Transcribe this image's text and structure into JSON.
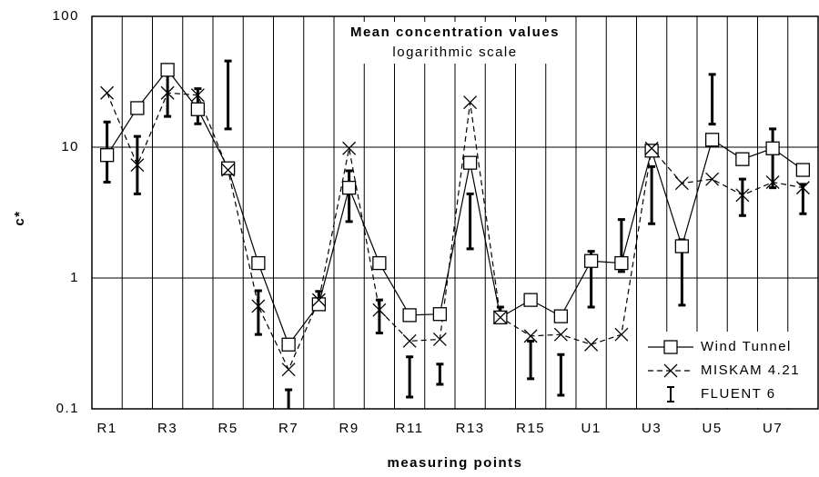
{
  "chart_data": {
    "type": "line",
    "title": "Mean concentration values",
    "subtitle": "logarithmic scale",
    "x_label": "measuring points",
    "y_label": "c*",
    "categories": [
      "R1",
      null,
      "R3",
      null,
      "R5",
      null,
      "R7",
      null,
      "R9",
      null,
      "R11",
      null,
      "R13",
      null,
      "R15",
      null,
      "U1",
      null,
      "U3",
      null,
      "U5",
      null,
      "U7",
      null
    ],
    "log_scale": true,
    "ylim": [
      0.1,
      100
    ],
    "yticks": [
      0.1,
      1,
      10,
      100
    ],
    "grid": true,
    "legend": "lower right",
    "series": [
      {
        "name": "Wind Tunnel",
        "color": "#000000",
        "marker": "square",
        "line": "solid",
        "values": [
          8.7,
          19.9,
          39,
          19.5,
          6.9,
          1.3,
          0.31,
          0.63,
          4.9,
          1.3,
          0.52,
          0.53,
          7.6,
          0.5,
          0.68,
          0.51,
          1.35,
          1.3,
          9.4,
          1.75,
          11.4,
          8.1,
          9.8,
          6.7
        ]
      },
      {
        "name": "MISKAM 4.21",
        "color": "#000000",
        "marker": "x",
        "line": "dashed",
        "values": [
          26,
          7.3,
          26,
          25,
          6.7,
          0.61,
          0.2,
          0.68,
          9.8,
          0.57,
          0.33,
          0.34,
          22,
          0.5,
          0.36,
          0.37,
          0.31,
          0.37,
          9.8,
          5.3,
          5.7,
          4.3,
          5.4,
          4.9
        ]
      },
      {
        "name": "FLUENT 6",
        "color": "#000000",
        "marker": "range",
        "low": [
          5.4,
          4.4,
          17.2,
          15.1,
          13.8,
          0.37,
          0.085,
          0.58,
          2.7,
          0.38,
          0.123,
          0.154,
          1.67,
          0.47,
          0.17,
          0.127,
          0.6,
          1.12,
          2.6,
          0.62,
          15,
          3.0,
          4.9,
          3.1
        ],
        "high": [
          15.6,
          12.1,
          36,
          28,
          45.6,
          0.8,
          0.14,
          0.79,
          6.6,
          0.68,
          0.25,
          0.22,
          4.4,
          0.6,
          0.33,
          0.26,
          1.6,
          2.8,
          7.1,
          1.96,
          36,
          5.7,
          13.8,
          5.2
        ]
      }
    ]
  }
}
